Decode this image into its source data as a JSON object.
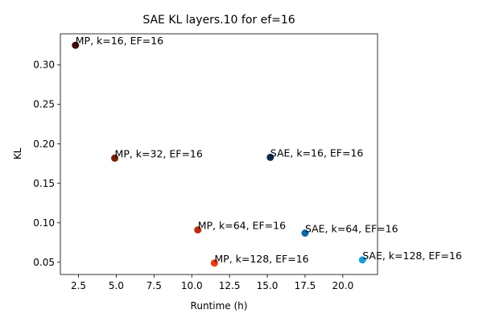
{
  "chart_data": {
    "type": "scatter",
    "title": "SAE KL layers.10 for ef=16",
    "xlabel": "Runtime (h)",
    "ylabel": "KL",
    "xlim": [
      1.3,
      22.3
    ],
    "ylim": [
      0.0345,
      0.3395
    ],
    "xticks": [
      2.5,
      5.0,
      7.5,
      10.0,
      12.5,
      15.0,
      17.5,
      20.0
    ],
    "xtick_labels": [
      "2.5",
      "5.0",
      "7.5",
      "10.0",
      "12.5",
      "15.0",
      "17.5",
      "20.0"
    ],
    "yticks": [
      0.05,
      0.1,
      0.15,
      0.2,
      0.25,
      0.3
    ],
    "ytick_labels": [
      "0.05",
      "0.10",
      "0.15",
      "0.20",
      "0.25",
      "0.30"
    ],
    "grid": false,
    "points": [
      {
        "label": "MP, k=16, EF=16",
        "x": 2.3,
        "y": 0.325,
        "color": "#3d0a0a"
      },
      {
        "label": "MP, k=32, EF=16",
        "x": 4.9,
        "y": 0.182,
        "color": "#7a1a0a"
      },
      {
        "label": "MP, k=64, EF=16",
        "x": 10.4,
        "y": 0.091,
        "color": "#c02a08"
      },
      {
        "label": "MP, k=128, EF=16",
        "x": 11.5,
        "y": 0.049,
        "color": "#ee3a10"
      },
      {
        "label": "SAE, k=16, EF=16",
        "x": 15.2,
        "y": 0.183,
        "color": "#0a2a4a"
      },
      {
        "label": "SAE, k=64, EF=16",
        "x": 17.5,
        "y": 0.087,
        "color": "#0a6aaa"
      },
      {
        "label": "SAE, k=128, EF=16",
        "x": 21.3,
        "y": 0.053,
        "color": "#1aa0e0"
      }
    ]
  }
}
